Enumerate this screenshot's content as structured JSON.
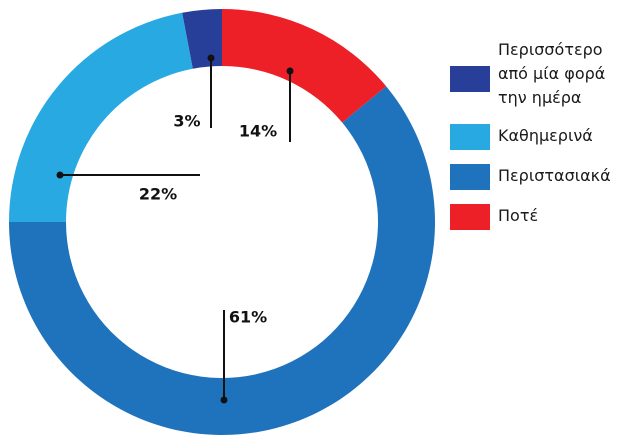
{
  "chart_data": {
    "type": "donut",
    "categories": [
      "Περισσότερο από μία φορά την ημέρα",
      "Καθημερινά",
      "Περιστασιακά",
      "Ποτέ"
    ],
    "values": [
      3,
      22,
      61,
      14
    ],
    "value_labels": [
      "3%",
      "22%",
      "61%",
      "14%"
    ],
    "colors": [
      "#283f99",
      "#29a9e1",
      "#1f73bd",
      "#ed1f27"
    ],
    "legend": "right"
  }
}
